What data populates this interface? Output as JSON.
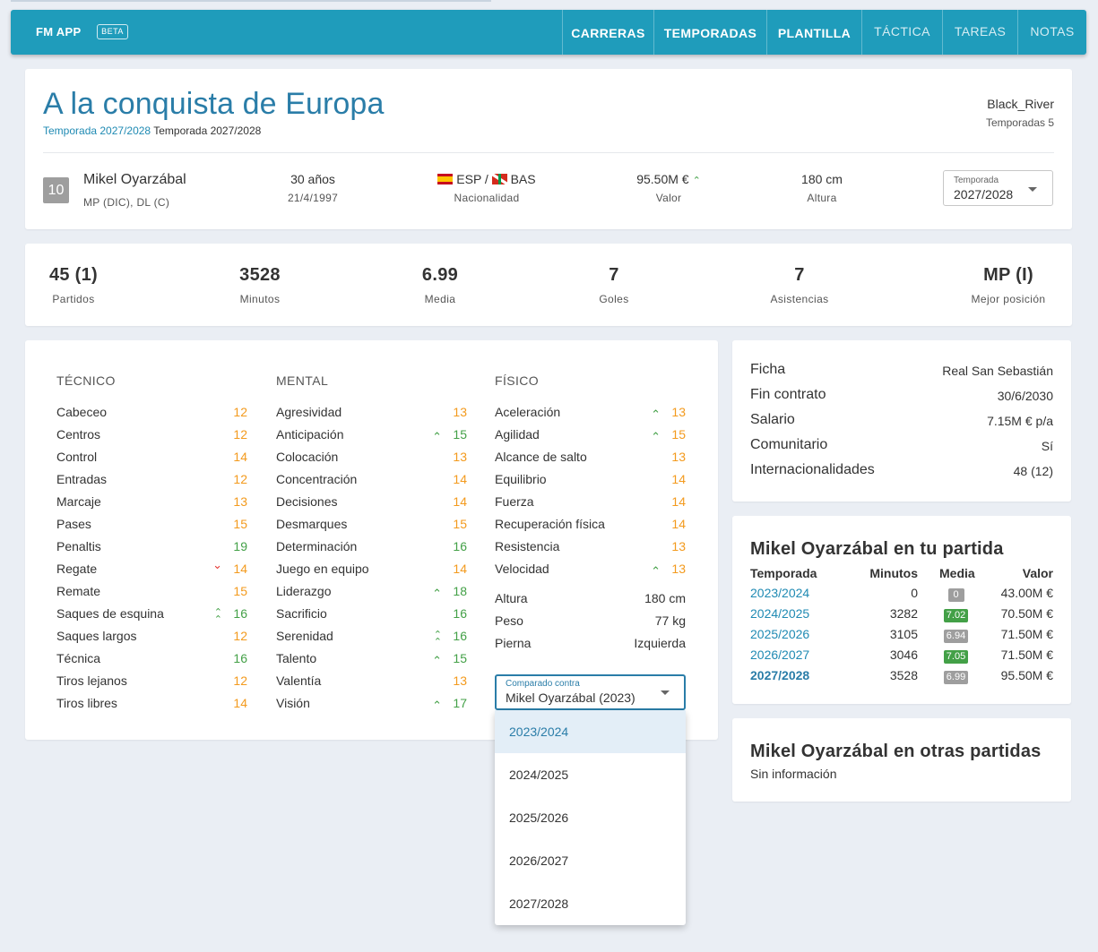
{
  "nav": {
    "brand": "FM APP",
    "beta": "BETA",
    "items": [
      {
        "label": "CARRERAS"
      },
      {
        "label": "TEMPORADAS"
      },
      {
        "label": "PLANTILLA"
      },
      {
        "label": "TÁCTICA"
      },
      {
        "label": "TAREAS"
      },
      {
        "label": "NOTAS"
      }
    ]
  },
  "header": {
    "title": "A la conquista de Europa",
    "subtitle_link": "Temporada 2027/2028",
    "subtitle_text": "Temporada 2027/2028",
    "user": "Black_River",
    "seasons": "Temporadas 5"
  },
  "player": {
    "number": "10",
    "name": "Mikel Oyarzábal",
    "positions": "MP (DIC), DL (C)",
    "age": "30 años",
    "birthdate": "21/4/1997",
    "nationality": "ESP / ",
    "nationality2": "BAS",
    "nationality_label": "Nacionalidad",
    "value": "95.50M €",
    "value_trend": "up",
    "value_label": "Valor",
    "height": "180 cm",
    "height_label": "Altura",
    "season_select_label": "Temporada",
    "season_select_value": "2027/2028"
  },
  "stats": [
    {
      "value": "45 (1)",
      "label": "Partidos"
    },
    {
      "value": "3528",
      "label": "Minutos"
    },
    {
      "value": "6.99",
      "label": "Media"
    },
    {
      "value": "7",
      "label": "Goles"
    },
    {
      "value": "7",
      "label": "Asistencias"
    },
    {
      "value": "MP (I)",
      "label": "Mejor posición"
    }
  ],
  "attributes": {
    "tecnico": {
      "title": "TÉCNICO",
      "items": [
        {
          "name": "Cabeceo",
          "value": "12",
          "color": "#f39a1d",
          "trend": ""
        },
        {
          "name": "Centros",
          "value": "12",
          "color": "#f39a1d",
          "trend": ""
        },
        {
          "name": "Control",
          "value": "14",
          "color": "#f39a1d",
          "trend": ""
        },
        {
          "name": "Entradas",
          "value": "12",
          "color": "#f39a1d",
          "trend": ""
        },
        {
          "name": "Marcaje",
          "value": "13",
          "color": "#f39a1d",
          "trend": ""
        },
        {
          "name": "Pases",
          "value": "15",
          "color": "#f39a1d",
          "trend": ""
        },
        {
          "name": "Penaltis",
          "value": "19",
          "color": "#43a047",
          "trend": ""
        },
        {
          "name": "Regate",
          "value": "14",
          "color": "#f39a1d",
          "trend": "down"
        },
        {
          "name": "Remate",
          "value": "15",
          "color": "#f39a1d",
          "trend": ""
        },
        {
          "name": "Saques de esquina",
          "value": "16",
          "color": "#43a047",
          "trend": "double-up"
        },
        {
          "name": "Saques largos",
          "value": "12",
          "color": "#f39a1d",
          "trend": ""
        },
        {
          "name": "Técnica",
          "value": "16",
          "color": "#43a047",
          "trend": ""
        },
        {
          "name": "Tiros lejanos",
          "value": "12",
          "color": "#f39a1d",
          "trend": ""
        },
        {
          "name": "Tiros libres",
          "value": "14",
          "color": "#f39a1d",
          "trend": ""
        }
      ]
    },
    "mental": {
      "title": "MENTAL",
      "items": [
        {
          "name": "Agresividad",
          "value": "13",
          "color": "#f39a1d",
          "trend": ""
        },
        {
          "name": "Anticipación",
          "value": "15",
          "color": "#43a047",
          "trend": "up"
        },
        {
          "name": "Colocación",
          "value": "13",
          "color": "#f39a1d",
          "trend": ""
        },
        {
          "name": "Concentración",
          "value": "14",
          "color": "#f39a1d",
          "trend": ""
        },
        {
          "name": "Decisiones",
          "value": "14",
          "color": "#f39a1d",
          "trend": ""
        },
        {
          "name": "Desmarques",
          "value": "15",
          "color": "#f39a1d",
          "trend": ""
        },
        {
          "name": "Determinación",
          "value": "16",
          "color": "#43a047",
          "trend": ""
        },
        {
          "name": "Juego en equipo",
          "value": "14",
          "color": "#f39a1d",
          "trend": ""
        },
        {
          "name": "Liderazgo",
          "value": "18",
          "color": "#43a047",
          "trend": "up"
        },
        {
          "name": "Sacrificio",
          "value": "16",
          "color": "#43a047",
          "trend": ""
        },
        {
          "name": "Serenidad",
          "value": "16",
          "color": "#43a047",
          "trend": "double-up"
        },
        {
          "name": "Talento",
          "value": "15",
          "color": "#43a047",
          "trend": "up"
        },
        {
          "name": "Valentía",
          "value": "13",
          "color": "#f39a1d",
          "trend": ""
        },
        {
          "name": "Visión",
          "value": "17",
          "color": "#43a047",
          "trend": "up"
        }
      ]
    },
    "fisico": {
      "title": "FÍSICO",
      "items": [
        {
          "name": "Aceleración",
          "value": "13",
          "color": "#f39a1d",
          "trend": "up"
        },
        {
          "name": "Agilidad",
          "value": "15",
          "color": "#f39a1d",
          "trend": "up"
        },
        {
          "name": "Alcance de salto",
          "value": "13",
          "color": "#f39a1d",
          "trend": ""
        },
        {
          "name": "Equilibrio",
          "value": "14",
          "color": "#f39a1d",
          "trend": ""
        },
        {
          "name": "Fuerza",
          "value": "14",
          "color": "#f39a1d",
          "trend": ""
        },
        {
          "name": "Recuperación física",
          "value": "14",
          "color": "#f39a1d",
          "trend": ""
        },
        {
          "name": "Resistencia",
          "value": "13",
          "color": "#f39a1d",
          "trend": ""
        },
        {
          "name": "Velocidad",
          "value": "13",
          "color": "#f39a1d",
          "trend": "up"
        }
      ],
      "extra": [
        {
          "name": "Altura",
          "value": "180 cm"
        },
        {
          "name": "Peso",
          "value": "77 kg"
        },
        {
          "name": "Pierna",
          "value": "Izquierda"
        }
      ]
    }
  },
  "compare": {
    "label": "Comparado contra",
    "value": "Mikel Oyarzábal (2023)",
    "options": [
      "2023/2024",
      "2024/2025",
      "2025/2026",
      "2026/2027",
      "2027/2028"
    ],
    "highlighted": "2023/2024"
  },
  "contract": [
    {
      "key": "Ficha",
      "value": "Real San Sebastián"
    },
    {
      "key": "Fin contrato",
      "value": "30/6/2030"
    },
    {
      "key": "Salario",
      "value": "7.15M € p/a"
    },
    {
      "key": "Comunitario",
      "value": "Sí"
    },
    {
      "key": "Internacionalidades",
      "value": "48 (12)"
    }
  ],
  "history": {
    "title": "Mikel Oyarzábal en tu partida",
    "headers": {
      "season": "Temporada",
      "minutes": "Minutos",
      "rating": "Media",
      "value": "Valor"
    },
    "rows": [
      {
        "season": "2023/2024",
        "minutes": "0",
        "rating": "0",
        "rating_color": "#9e9e9e",
        "value": "43.00M €"
      },
      {
        "season": "2024/2025",
        "minutes": "3282",
        "rating": "7.02",
        "rating_color": "#43a047",
        "value": "70.50M €"
      },
      {
        "season": "2025/2026",
        "minutes": "3105",
        "rating": "6.94",
        "rating_color": "#9e9e9e",
        "value": "71.50M €"
      },
      {
        "season": "2026/2027",
        "minutes": "3046",
        "rating": "7.05",
        "rating_color": "#43a047",
        "value": "71.50M €"
      },
      {
        "season": "2027/2028",
        "minutes": "3528",
        "rating": "6.99",
        "rating_color": "#9e9e9e",
        "value": "95.50M €"
      }
    ]
  },
  "other": {
    "title": "Mikel Oyarzábal en otras partidas",
    "text": "Sin información"
  }
}
